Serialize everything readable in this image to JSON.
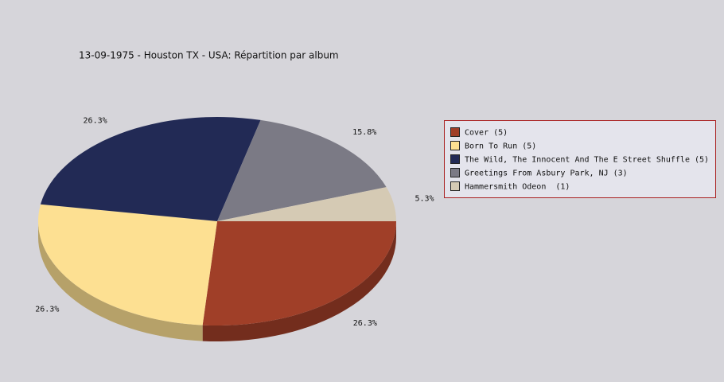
{
  "chart_data": {
    "type": "pie",
    "title": "13-09-1975 - Houston TX - USA:  Répartition par album",
    "categories": [
      "Cover (5)",
      "Born To Run (5)",
      "The Wild, The Innocent And The E Street Shuffle (5)",
      "Greetings From Asbury Park, NJ (3)",
      "Hammersmith Odeon  (1)"
    ],
    "values": [
      26.3,
      26.3,
      26.3,
      15.8,
      5.3
    ],
    "value_labels": [
      "26.3%",
      "26.3%",
      "26.3%",
      "15.8%",
      "5.3%"
    ],
    "colors": [
      "#a03f28",
      "#fde092",
      "#222a55",
      "#7b7a85",
      "#d5cab4"
    ],
    "legend": "right"
  }
}
